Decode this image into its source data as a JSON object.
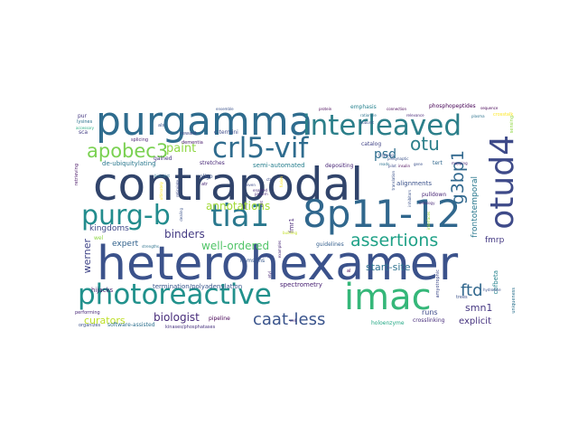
{
  "word_cloud": {
    "words": [
      {
        "text": "heterohexamer",
        "color": "#3b528b"
      },
      {
        "text": "contrapodal",
        "color": "#31446b"
      },
      {
        "text": "purgamma",
        "color": "#2f6c8e"
      },
      {
        "text": "interleaved",
        "color": "#2c7f8a"
      },
      {
        "text": "8p11-12",
        "color": "#30678d"
      },
      {
        "text": "photoreactive",
        "color": "#21918c"
      },
      {
        "text": "imac",
        "color": "#35b779"
      },
      {
        "text": "crl5-vif",
        "color": "#2f6c8e"
      },
      {
        "text": "purg-b",
        "color": "#228c8d"
      },
      {
        "text": "tia1",
        "color": "#2a788e"
      },
      {
        "text": "otud4",
        "color": "#3e4a89"
      },
      {
        "text": "apobec3",
        "color": "#7ad151"
      },
      {
        "text": "assertions",
        "color": "#1fa187"
      },
      {
        "text": "otu",
        "color": "#2c7f8a"
      },
      {
        "text": "g3bp1",
        "color": "#31688e"
      },
      {
        "text": "caat-less",
        "color": "#3a548c"
      },
      {
        "text": "ftd",
        "color": "#30678d"
      },
      {
        "text": "paint",
        "color": "#8fd744"
      },
      {
        "text": "psd",
        "color": "#2e6e8e"
      },
      {
        "text": "binders",
        "color": "#443a83"
      },
      {
        "text": "annotations",
        "color": "#a2da37"
      },
      {
        "text": "well-ordered",
        "color": "#52c569"
      },
      {
        "text": "biologist",
        "color": "#472c7a"
      },
      {
        "text": "curators",
        "color": "#bddf26"
      },
      {
        "text": "kingdoms",
        "color": "#3f4889"
      },
      {
        "text": "expert",
        "color": "#33638d"
      },
      {
        "text": "werner",
        "color": "#404588"
      },
      {
        "text": "start-site",
        "color": "#2d718e"
      },
      {
        "text": "smn1",
        "color": "#453781"
      },
      {
        "text": "explicit",
        "color": "#46337f"
      },
      {
        "text": "fmrp",
        "color": "#443983"
      },
      {
        "text": "runs",
        "color": "#3e4a89"
      },
      {
        "text": "frontotemporal",
        "color": "#2a788e"
      },
      {
        "text": "hijacks",
        "color": "#481f70"
      },
      {
        "text": "termination/polyadenylation",
        "color": "#39568c"
      },
      {
        "text": "spectrometry",
        "color": "#482173"
      },
      {
        "text": "pipeline",
        "color": "#440154"
      },
      {
        "text": "software-assisted",
        "color": "#2d708e"
      },
      {
        "text": "crosslinking",
        "color": "#472d7b"
      },
      {
        "text": "pulldown",
        "color": "#482576"
      },
      {
        "text": "alignments",
        "color": "#3b528b"
      },
      {
        "text": "guidelines",
        "color": "#355f8d"
      },
      {
        "text": "semi-automated",
        "color": "#277f8e"
      },
      {
        "text": "stretches",
        "color": "#482878"
      },
      {
        "text": "de-ubiquitylating",
        "color": "#2a788e"
      },
      {
        "text": "gained",
        "color": "#46327e"
      },
      {
        "text": "depositing",
        "color": "#482677"
      },
      {
        "text": "catalog",
        "color": "#414487"
      },
      {
        "text": "phosphopeptides",
        "color": "#440154"
      },
      {
        "text": "emphasis",
        "color": "#26828e"
      },
      {
        "text": "c-termini",
        "color": "#3e4a89"
      },
      {
        "text": "dementia",
        "color": "#481b6d"
      },
      {
        "text": "oligo",
        "color": "#3b528b"
      },
      {
        "text": "fmr1",
        "color": "#482878"
      },
      {
        "text": "tert",
        "color": "#31688e"
      },
      {
        "text": "lc-ms/ms",
        "color": "#38588c"
      },
      {
        "text": "sca",
        "color": "#433e85"
      },
      {
        "text": "pur",
        "color": "#453882"
      },
      {
        "text": "retrieving",
        "color": "#471365"
      },
      {
        "text": "holoenzyme",
        "color": "#22a884"
      },
      {
        "text": "amyotrophic",
        "color": "#3e4989"
      },
      {
        "text": "trees",
        "color": "#3b528b"
      },
      {
        "text": "cbfbeta",
        "color": "#25838e"
      },
      {
        "text": "crosstalk",
        "color": "#fde725"
      },
      {
        "text": "sensing",
        "color": "#90d743"
      },
      {
        "text": "uniqueness",
        "color": "#2c728e"
      },
      {
        "text": "kinases/phosphatases",
        "color": "#46327e"
      },
      {
        "text": "organizes",
        "color": "#3b528b"
      },
      {
        "text": "performing",
        "color": "#482878"
      },
      {
        "text": "splicing",
        "color": "#481f70"
      },
      {
        "text": "reward",
        "color": "#3e4a89"
      },
      {
        "text": "als",
        "color": "#3b528b"
      },
      {
        "text": "lysines",
        "color": "#2c728e"
      },
      {
        "text": "accessory",
        "color": "#27ad81"
      },
      {
        "text": "presynaptic",
        "color": "#3b528b"
      },
      {
        "text": "interfaces",
        "color": "#a0da39"
      },
      {
        "text": "connection",
        "color": "#440154"
      },
      {
        "text": "enabled",
        "color": "#482878"
      },
      {
        "text": "seven",
        "color": "#3e4a89"
      },
      {
        "text": "translation",
        "color": "#3b528b"
      },
      {
        "text": "examples",
        "color": "#482878"
      },
      {
        "text": "building",
        "color": "#c2df23"
      },
      {
        "text": "ontology",
        "color": "#482878"
      },
      {
        "text": "inhibitors",
        "color": "#3b528b"
      },
      {
        "text": "strengths",
        "color": "#2c728e"
      },
      {
        "text": "pattern",
        "color": "#482878"
      },
      {
        "text": "dealing",
        "color": "#3b528b"
      },
      {
        "text": "reticulate",
        "color": "#3e4a89"
      },
      {
        "text": "ultimately",
        "color": "#fde725"
      },
      {
        "text": "al",
        "color": "#440154"
      },
      {
        "text": "atr",
        "color": "#482878"
      },
      {
        "text": "ensemble",
        "color": "#3b528b"
      },
      {
        "text": "rationale",
        "color": "#2c728e"
      },
      {
        "text": "protein",
        "color": "#440154"
      },
      {
        "text": "wnt",
        "color": "#472d7b"
      },
      {
        "text": "trapping",
        "color": "#3b528b"
      },
      {
        "text": "domain",
        "color": "#3e4a89"
      },
      {
        "text": "relevance",
        "color": "#482878"
      },
      {
        "text": "plasma",
        "color": "#2c728e"
      },
      {
        "text": "sequence",
        "color": "#440154"
      },
      {
        "text": "subunit",
        "color": "#3b528b"
      },
      {
        "text": "etyl",
        "color": "#482878"
      },
      {
        "text": "pilot",
        "color": "#3e4a89"
      },
      {
        "text": "fusion",
        "color": "#fde725"
      },
      {
        "text": "reads",
        "color": "#2c728e"
      },
      {
        "text": "gene",
        "color": "#3b528b"
      },
      {
        "text": "insulin",
        "color": "#440154"
      },
      {
        "text": "mapping",
        "color": "#482878"
      },
      {
        "text": "hydrolase",
        "color": "#3b528b"
      },
      {
        "text": "ctr",
        "color": "#3e4a89"
      },
      {
        "text": "wel",
        "color": "#8fd744"
      },
      {
        "text": "biologist",
        "color": "#2c728e"
      },
      {
        "text": "cell",
        "color": "#482878"
      }
    ]
  }
}
